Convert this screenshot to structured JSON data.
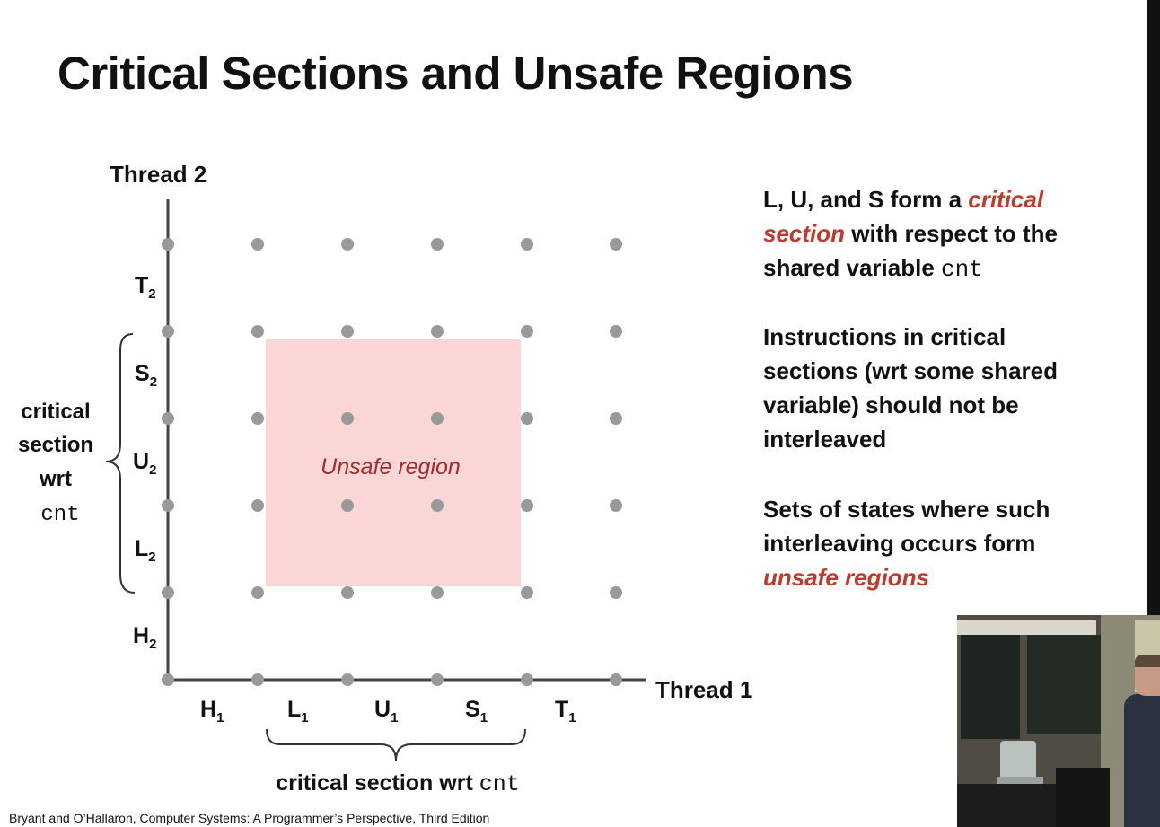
{
  "title": "Critical Sections and Unsafe Regions",
  "axes": {
    "y_label": "Thread 2",
    "x_label": "Thread 1",
    "x_ticks": [
      "H",
      "L",
      "U",
      "S",
      "T"
    ],
    "x_subscript": "1",
    "y_ticks": [
      "H",
      "L",
      "U",
      "S",
      "T"
    ],
    "y_subscript": "2"
  },
  "region": {
    "label": "Unsafe region",
    "x_range": [
      "L1",
      "S1"
    ],
    "y_range": [
      "L2",
      "S2"
    ],
    "color": "#fad6d6",
    "label_color": "#a52a2a"
  },
  "brace_bottom": {
    "text": "critical section wrt ",
    "code": "cnt"
  },
  "brace_left": {
    "lines": [
      "critical",
      "section",
      "wrt"
    ],
    "code": "cnt"
  },
  "notes": {
    "p1": {
      "a": "L, U, and S form a ",
      "em": "critical section",
      "b": " with respect to the shared variable ",
      "code": "cnt"
    },
    "p2": "Instructions in critical sections (wrt some shared variable) should not be interleaved",
    "p3": {
      "a": "Sets of states where such interleaving occurs form ",
      "em": "unsafe regions"
    }
  },
  "footer": "Bryant and O’Hallaron, Computer Systems: A Programmer’s Perspective, Third Edition",
  "colors": {
    "accent": "#c0392b",
    "dot": "#999999",
    "axis": "#444444"
  }
}
